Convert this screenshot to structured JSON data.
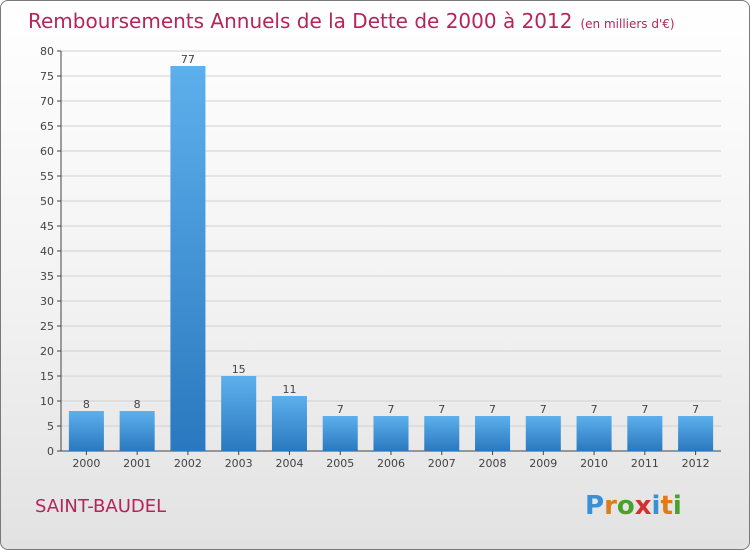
{
  "chart_data": {
    "type": "bar",
    "title": "Remboursements Annuels de la Dette de 2000 à 2012",
    "unit_note": "(en milliers d'€)",
    "categories": [
      "2000",
      "2001",
      "2002",
      "2003",
      "2004",
      "2005",
      "2006",
      "2007",
      "2008",
      "2009",
      "2010",
      "2011",
      "2012"
    ],
    "values": [
      8,
      8,
      77,
      15,
      11,
      7,
      7,
      7,
      7,
      7,
      7,
      7,
      7
    ],
    "ylim": [
      0,
      80
    ],
    "yticks": [
      0,
      5,
      10,
      15,
      20,
      25,
      30,
      35,
      40,
      45,
      50,
      55,
      60,
      65,
      70,
      75,
      80
    ],
    "grid": true,
    "bar_color": "#3a92d8"
  },
  "commune": "SAINT-BAUDEL",
  "logo": {
    "letters": [
      "P",
      "r",
      "o",
      "x",
      "i",
      "t",
      "i"
    ],
    "colors": [
      "#3b8fd6",
      "#e07b1a",
      "#4aa02c",
      "#d62f2f",
      "#3b8fd6",
      "#e07b1a",
      "#4aa02c"
    ]
  }
}
